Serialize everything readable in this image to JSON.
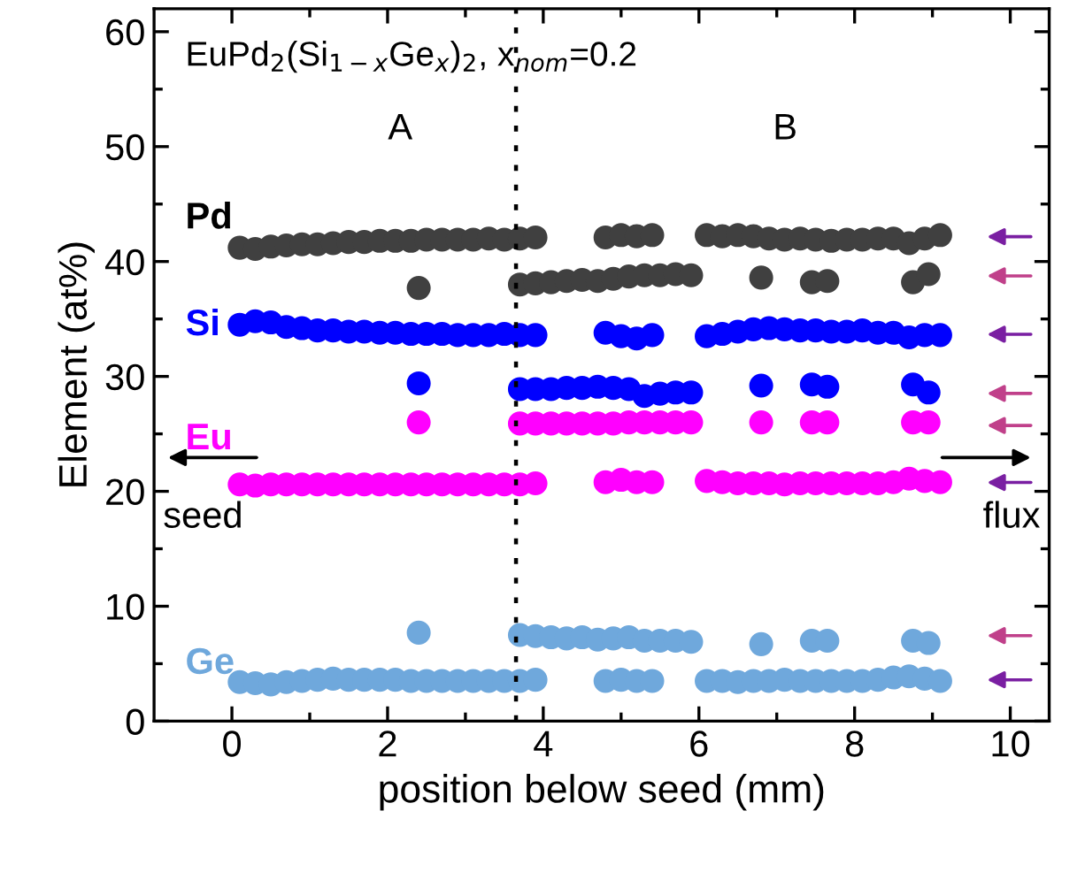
{
  "chart_data": {
    "type": "scatter",
    "title": "EuPd$_{2}$(Si$_{1−x}$Ge$_{x}$)$_{2}$, x$_{nom}$=0.2",
    "xlabel": "position below seed (mm)",
    "ylabel": "Element (at%)",
    "x": [
      0.1,
      0.3,
      0.5,
      0.7,
      0.9,
      1.1,
      1.3,
      1.5,
      1.7,
      1.9,
      2.1,
      2.3,
      2.5,
      2.7,
      2.9,
      3.1,
      3.3,
      3.5,
      3.7,
      3.9,
      4.8,
      5.0,
      5.2,
      5.4,
      6.1,
      6.3,
      6.5,
      6.7,
      6.9,
      7.1,
      7.3,
      7.5,
      7.7,
      7.9,
      8.1,
      8.3,
      8.5,
      8.7,
      8.9,
      9.1,
      2.4,
      3.7,
      3.9,
      4.1,
      4.3,
      4.5,
      4.7,
      4.9,
      5.1,
      5.3,
      5.5,
      5.7,
      5.9,
      6.8,
      7.45,
      7.65,
      8.75,
      8.95
    ],
    "series": [
      {
        "name": "Pd",
        "color": "#404040",
        "values": [
          41.2,
          41.1,
          41.3,
          41.4,
          41.5,
          41.5,
          41.6,
          41.7,
          41.7,
          41.8,
          41.8,
          41.8,
          41.9,
          41.9,
          41.9,
          41.9,
          42.0,
          41.9,
          42.0,
          42.1,
          42.1,
          42.3,
          42.2,
          42.3,
          42.3,
          42.2,
          42.3,
          42.2,
          42.0,
          41.9,
          42.0,
          41.9,
          41.8,
          41.9,
          41.9,
          42.0,
          42.0,
          41.6,
          42.0,
          42.3,
          37.7,
          38.0,
          38.1,
          38.2,
          38.3,
          38.4,
          38.3,
          38.5,
          38.7,
          38.8,
          38.8,
          38.9,
          38.8,
          38.6,
          38.2,
          38.3,
          38.2,
          38.9
        ]
      },
      {
        "name": "Si",
        "color": "#0000ff",
        "values": [
          34.5,
          34.8,
          34.7,
          34.3,
          34.2,
          34.0,
          34.0,
          33.9,
          33.9,
          33.8,
          33.8,
          33.7,
          33.7,
          33.7,
          33.6,
          33.6,
          33.6,
          33.7,
          33.6,
          33.6,
          33.8,
          33.5,
          33.3,
          33.6,
          33.5,
          33.7,
          33.9,
          34.1,
          34.2,
          34.1,
          34.0,
          34.0,
          33.9,
          33.9,
          34.0,
          33.8,
          33.8,
          33.4,
          33.6,
          33.6,
          29.4,
          28.9,
          28.9,
          28.9,
          29.0,
          29.0,
          29.1,
          29.0,
          28.9,
          28.3,
          28.5,
          28.6,
          28.6,
          29.2,
          29.3,
          29.1,
          29.3,
          28.6
        ]
      },
      {
        "name": "Eu",
        "color": "#ff00ff",
        "values": [
          20.6,
          20.5,
          20.6,
          20.6,
          20.6,
          20.6,
          20.6,
          20.6,
          20.6,
          20.6,
          20.6,
          20.6,
          20.6,
          20.6,
          20.6,
          20.6,
          20.6,
          20.6,
          20.6,
          20.7,
          20.8,
          21.0,
          20.8,
          20.8,
          20.9,
          20.8,
          20.7,
          20.7,
          20.7,
          20.6,
          20.7,
          20.7,
          20.7,
          20.7,
          20.7,
          20.7,
          20.8,
          21.1,
          20.9,
          20.8,
          26.0,
          25.9,
          25.9,
          25.9,
          25.9,
          25.9,
          25.9,
          25.9,
          26.0,
          26.0,
          26.0,
          26.0,
          26.0,
          26.0,
          26.0,
          26.0,
          26.0,
          26.0
        ]
      },
      {
        "name": "Ge",
        "color": "#6fa8dc",
        "values": [
          3.4,
          3.3,
          3.2,
          3.4,
          3.5,
          3.6,
          3.7,
          3.6,
          3.6,
          3.6,
          3.6,
          3.5,
          3.5,
          3.5,
          3.5,
          3.5,
          3.5,
          3.5,
          3.5,
          3.6,
          3.5,
          3.6,
          3.5,
          3.5,
          3.5,
          3.5,
          3.4,
          3.5,
          3.5,
          3.6,
          3.5,
          3.5,
          3.5,
          3.5,
          3.5,
          3.6,
          3.8,
          3.9,
          3.7,
          3.5,
          7.7,
          7.5,
          7.4,
          7.3,
          7.2,
          7.3,
          7.1,
          7.2,
          7.3,
          7.0,
          7.0,
          7.0,
          6.9,
          6.7,
          7.0,
          7.0,
          7.0,
          6.8
        ]
      }
    ],
    "marker": "circle",
    "xlim": [
      -1,
      10.5
    ],
    "xticks": [
      0,
      2,
      4,
      6,
      8,
      10
    ],
    "ylim": [
      0,
      62
    ],
    "yticks": [
      0,
      10,
      20,
      30,
      40,
      50,
      60
    ],
    "ref_lines": [
      {
        "axis": "x",
        "value": 3.65,
        "color": "#000000",
        "line_style": "dotted"
      }
    ],
    "annotations": [
      "A",
      "B",
      "seed",
      "flux"
    ],
    "legend": false,
    "grid": false
  }
}
